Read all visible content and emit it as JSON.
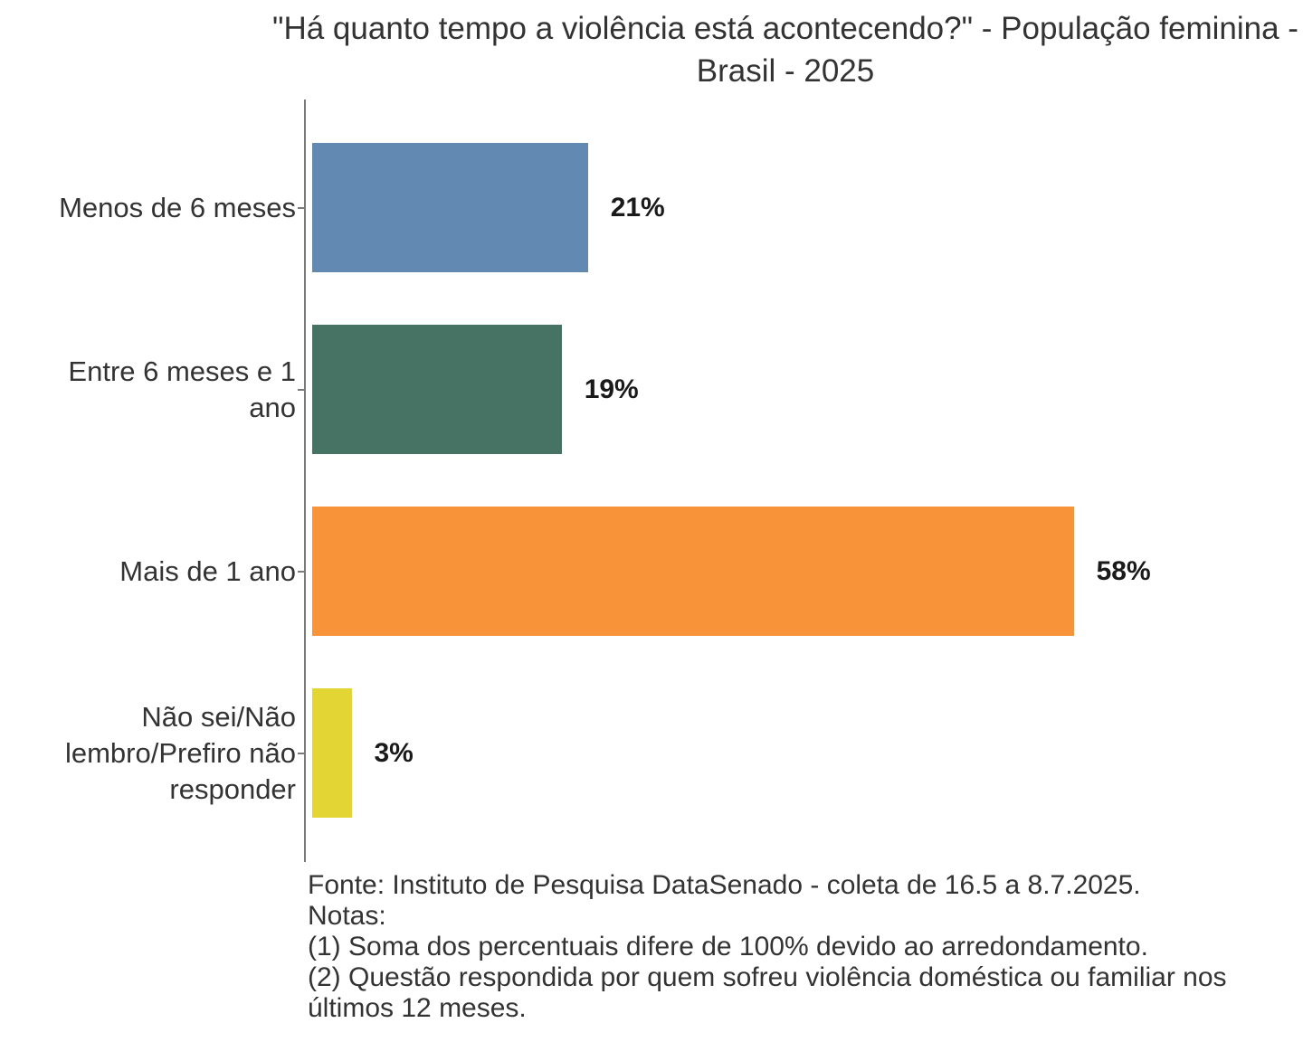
{
  "chart_data": {
    "type": "bar",
    "orientation": "horizontal",
    "title": "\"Há quanto tempo a violência está acontecendo?\" - População feminina - Brasil - 2025",
    "categories": [
      "Menos de 6 meses",
      "Entre 6 meses e 1 ano",
      "Mais de 1 ano",
      "Não sei/Não lembro/Prefiro não responder"
    ],
    "values": [
      21,
      19,
      58,
      3
    ],
    "unit": "%",
    "xlim": [
      0,
      62
    ],
    "grid": false,
    "legend": "none",
    "bar_colors": [
      "#6289B2",
      "#467364",
      "#F99339",
      "#E3D634"
    ],
    "axis_color": "#7A7A7A",
    "caption": "Fonte: Instituto de Pesquisa DataSenado - coleta de 16.5 a 8.7.2025. Notas: (1) Soma dos percentuais difere de 100% devido ao arredondamento. (2) Questão respondida por quem sofreu violência doméstica ou familiar nos últimos 12 meses."
  },
  "rows": [
    {
      "label": "Menos de 6 meses",
      "value": 21,
      "value_label": "21%",
      "color": "#6289B2"
    },
    {
      "label": "Entre 6 meses e 1\nano",
      "value": 19,
      "value_label": "19%",
      "color": "#467364"
    },
    {
      "label": "Mais de 1 ano",
      "value": 58,
      "value_label": "58%",
      "color": "#F99339"
    },
    {
      "label": "Não sei/Não\nlembro/Prefiro não\nresponder",
      "value": 3,
      "value_label": "3%",
      "color": "#E3D634"
    }
  ],
  "caption": {
    "fonte": "Fonte: Instituto de Pesquisa DataSenado - coleta de 16.5 a 8.7.2025.",
    "notas_label": "Notas:",
    "note1": "(1) Soma dos percentuais difere de 100% devido ao arredondamento.",
    "note2": "(2) Questão respondida por quem sofreu violência doméstica ou familiar nos\núltimos 12 meses."
  },
  "colors": {
    "background": "#FFFFFF",
    "title_text": "#333333",
    "label_text": "#333333",
    "value_text": "#1A1A1A",
    "axis": "#7A7A7A"
  }
}
